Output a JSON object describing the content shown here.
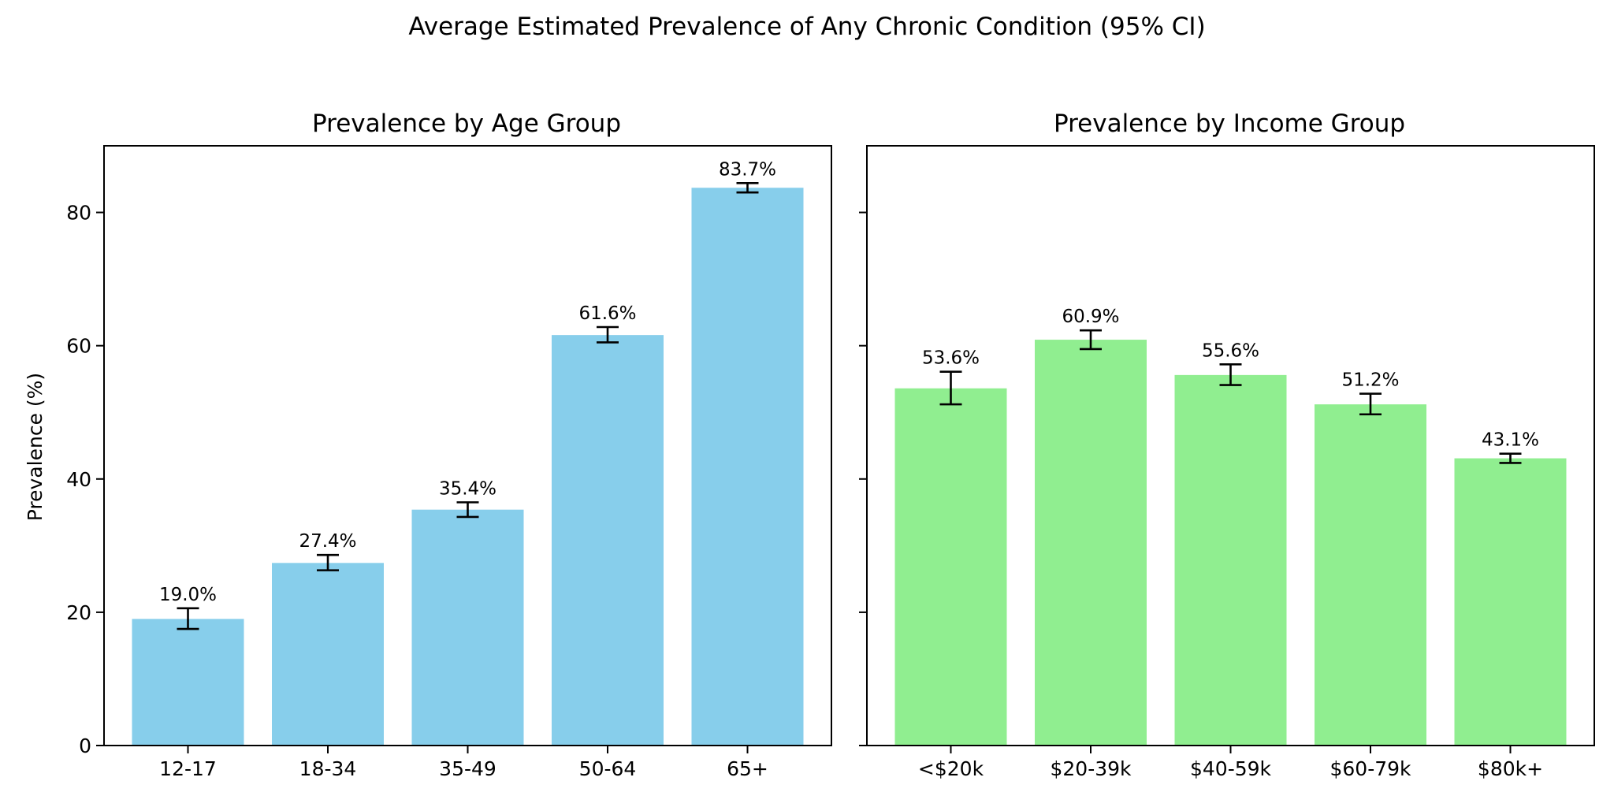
{
  "figure": {
    "suptitle": "Average Estimated Prevalence of Any Chronic Condition (95% CI)"
  },
  "chart_data": [
    {
      "type": "bar",
      "title": "Prevalence by Age Group",
      "xlabel": "",
      "ylabel": "Prevalence (%)",
      "ylim": [
        0,
        90
      ],
      "yticks": [
        0,
        20,
        40,
        60,
        80
      ],
      "color": "#87CEEB",
      "categories": [
        "12-17",
        "18-34",
        "35-49",
        "50-64",
        "65+"
      ],
      "values": [
        19.0,
        27.4,
        35.4,
        61.6,
        83.7
      ],
      "ci_lower": [
        17.5,
        26.3,
        34.3,
        60.5,
        83.0
      ],
      "ci_upper": [
        20.6,
        28.6,
        36.5,
        62.8,
        84.4
      ],
      "data_labels": [
        "19.0%",
        "27.4%",
        "35.4%",
        "61.6%",
        "83.7%"
      ],
      "grid": false,
      "legend": "none"
    },
    {
      "type": "bar",
      "title": "Prevalence by Income Group",
      "xlabel": "",
      "ylabel": "",
      "ylim": [
        0,
        90
      ],
      "yticks": [
        0,
        20,
        40,
        60,
        80
      ],
      "color": "#90EE90",
      "categories": [
        "<$20k",
        "$20-39k",
        "$40-59k",
        "$60-79k",
        "$80k+"
      ],
      "values": [
        53.6,
        60.9,
        55.6,
        51.2,
        43.1
      ],
      "ci_lower": [
        51.2,
        59.5,
        54.1,
        49.7,
        42.4
      ],
      "ci_upper": [
        56.1,
        62.3,
        57.2,
        52.8,
        43.8
      ],
      "data_labels": [
        "53.6%",
        "60.9%",
        "55.6%",
        "51.2%",
        "43.1%"
      ],
      "grid": false,
      "legend": "none"
    }
  ]
}
